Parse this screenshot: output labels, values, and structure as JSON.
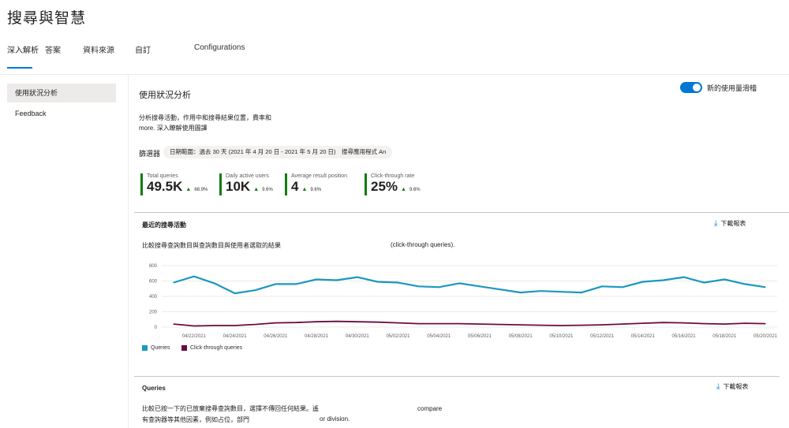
{
  "header": {
    "title": "搜尋與智慧"
  },
  "tabs": [
    {
      "label": "深入解析"
    },
    {
      "label": "答案"
    },
    {
      "label": "資料來源"
    },
    {
      "label": "自訂"
    },
    {
      "label": "Configurations"
    }
  ],
  "sidebar": {
    "items": [
      {
        "label": "使用狀況分析"
      },
      {
        "label": "Feedback"
      }
    ]
  },
  "main": {
    "title": "使用狀況分析",
    "toggle_label": "新的使用量滑稽",
    "desc_line1": "分析搜尋活動，作用中和搜尋結果位置，費率和",
    "desc_line2": "more. 深入瞭解使用圖譯",
    "filter_label": "篩選器",
    "filter_date": "日期範圍：過去 30 天 (2021 年 4 月 20 日 - 2021 年 5 月 20 日)",
    "filter_app": "搜尋應用程式 An"
  },
  "kpis": [
    {
      "label": "Total queries",
      "value": "49.5K",
      "change": "68.9%"
    },
    {
      "label": "Daily active users",
      "value": "10K",
      "change": "9.6%"
    },
    {
      "label": "Average result position",
      "value": "4",
      "change": "9.6%"
    },
    {
      "label": "Click-through rate",
      "value": "25%",
      "change": "9.6%"
    }
  ],
  "activity": {
    "title": "最近的搜尋活動",
    "download_label": "下載報表",
    "subtitle_a": "比較搜尋查詢數目與查詢數目與使用者選取的結果",
    "subtitle_b": "(click-through queries)."
  },
  "chart_data": {
    "type": "line",
    "x": [
      "04/21/2021",
      "04/22/2021",
      "04/23/2021",
      "04/24/2021",
      "04/25/2021",
      "04/26/2021",
      "04/27/2021",
      "04/28/2021",
      "04/29/2021",
      "04/30/2021",
      "05/01/2021",
      "05/02/2021",
      "05/03/2021",
      "05/04/2021",
      "05/05/2021",
      "05/06/2021",
      "05/07/2021",
      "05/08/2021",
      "05/09/2021",
      "05/10/2021",
      "05/11/2021",
      "05/12/2021",
      "05/13/2021",
      "05/14/2021",
      "05/15/2021",
      "05/16/2021",
      "05/17/2021",
      "05/18/2021",
      "05/19/2021",
      "05/20/2021"
    ],
    "x_tick_labels": [
      "04/22/2021",
      "04/24/2021",
      "04/26/2021",
      "04/28/2021",
      "04/30/2021",
      "05/02/2021",
      "05/04/2021",
      "05/06/2021",
      "05/08/2021",
      "05/10/2021",
      "05/12/2021",
      "05/14/2021",
      "05/16/2021",
      "05/18/2021",
      "05/20/2021"
    ],
    "y_ticks": [
      0,
      200,
      400,
      600,
      800
    ],
    "ylim": [
      0,
      800
    ],
    "grid": true,
    "legend": "bottom-left",
    "series": [
      {
        "name": "Queries",
        "color": "#1b98c0",
        "values": [
          580,
          660,
          570,
          440,
          480,
          560,
          560,
          620,
          610,
          650,
          590,
          580,
          530,
          520,
          570,
          530,
          490,
          450,
          470,
          460,
          450,
          530,
          520,
          590,
          610,
          650,
          580,
          620,
          560,
          520
        ]
      },
      {
        "name": "Click-through queries",
        "color": "#6b0d3c",
        "values": [
          40,
          15,
          20,
          20,
          35,
          55,
          60,
          70,
          75,
          70,
          65,
          55,
          45,
          45,
          45,
          40,
          35,
          30,
          25,
          20,
          25,
          30,
          40,
          50,
          60,
          55,
          45,
          40,
          50,
          45
        ]
      }
    ]
  },
  "queries_card": {
    "title": "Queries",
    "download_label": "下載報表",
    "line1_a": "比較已按一下的已放棄搜尋查詢數目，選擇不傳回任何結果。遙",
    "line1_b": "compare",
    "line2_a": "有查詢器等其他因素，例如占位，部門",
    "line2_b": "or division."
  }
}
